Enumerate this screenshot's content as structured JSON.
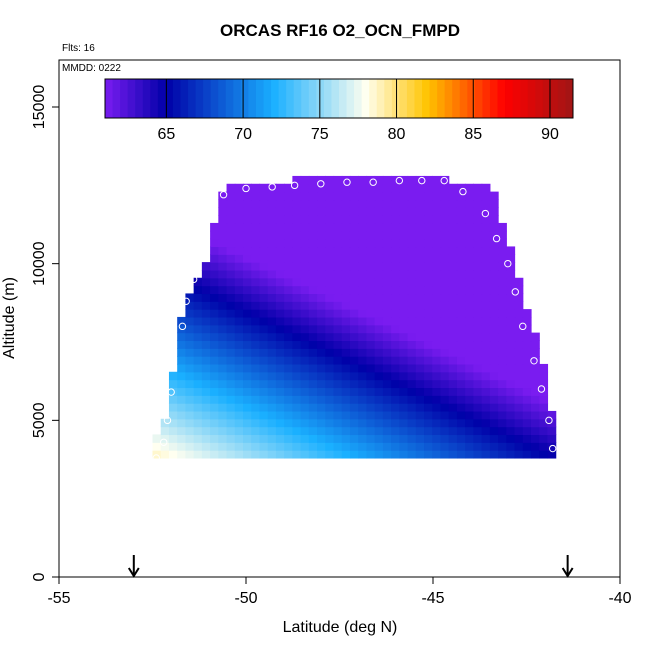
{
  "chart_data": {
    "type": "heatmap",
    "title": "ORCAS RF16 O2_OCN_FMPD",
    "annotations": {
      "flights": "Flts: 16",
      "date": "MMDD: 0222"
    },
    "xlabel": "Latitude (deg N)",
    "ylabel": "Altitude (m)",
    "xlim": [
      -55,
      -40
    ],
    "ylim": [
      0,
      16500
    ],
    "xticks": [
      -55,
      -50,
      -45,
      -40
    ],
    "yticks": [
      0,
      5000,
      10000,
      15000
    ],
    "colorbar": {
      "range": [
        61,
        91.5
      ],
      "ticks": [
        65,
        70,
        75,
        80,
        85,
        90
      ],
      "stops": [
        "#7a1cf0",
        "#0000a8",
        "#1ab0ff",
        "#fffff0",
        "#ffc400",
        "#ff0000",
        "#a01515"
      ],
      "stop_values": [
        61,
        65,
        72,
        78,
        82,
        87,
        91.5
      ]
    },
    "field": {
      "lat_range": [
        -52.5,
        -41.7
      ],
      "alt_range": [
        3800,
        12700
      ],
      "value_model": {
        "base": 79,
        "lat_coef": -1.3,
        "alt_coef": -0.0023,
        "lat_ref": -52.5,
        "alt_ref": 3800
      },
      "boundary": [
        {
          "alt": 3800,
          "lat_min": -52.5,
          "lat_max": -41.7
        },
        {
          "alt": 4400,
          "lat_min": -52.4,
          "lat_max": -41.7
        },
        {
          "alt": 5000,
          "lat_min": -52.2,
          "lat_max": -41.8
        },
        {
          "alt": 6000,
          "lat_min": -52.0,
          "lat_max": -41.9
        },
        {
          "alt": 7000,
          "lat_min": -51.9,
          "lat_max": -42.1
        },
        {
          "alt": 8000,
          "lat_min": -51.8,
          "lat_max": -42.3
        },
        {
          "alt": 9000,
          "lat_min": -51.5,
          "lat_max": -42.6
        },
        {
          "alt": 10000,
          "lat_min": -51.1,
          "lat_max": -42.8
        },
        {
          "alt": 11000,
          "lat_min": -50.9,
          "lat_max": -43.0
        },
        {
          "alt": 12000,
          "lat_min": -50.7,
          "lat_max": -43.4
        },
        {
          "alt": 12400,
          "lat_min": -50.7,
          "lat_max": -43.3
        },
        {
          "alt": 12700,
          "lat_min": -48.7,
          "lat_max": -44.6
        }
      ]
    },
    "flight_points": [
      {
        "lat": -52.4,
        "alt": 3800
      },
      {
        "lat": -52.2,
        "alt": 4300
      },
      {
        "lat": -52.1,
        "alt": 5000
      },
      {
        "lat": -52.0,
        "alt": 5900
      },
      {
        "lat": -51.7,
        "alt": 8000
      },
      {
        "lat": -51.6,
        "alt": 8800
      },
      {
        "lat": -51.4,
        "alt": 9500
      },
      {
        "lat": -51.1,
        "alt": 10700
      },
      {
        "lat": -50.9,
        "alt": 11500
      },
      {
        "lat": -50.6,
        "alt": 12200
      },
      {
        "lat": -50.0,
        "alt": 12400
      },
      {
        "lat": -49.3,
        "alt": 12450
      },
      {
        "lat": -48.7,
        "alt": 12500
      },
      {
        "lat": -48.0,
        "alt": 12550
      },
      {
        "lat": -47.3,
        "alt": 12600
      },
      {
        "lat": -46.6,
        "alt": 12600
      },
      {
        "lat": -45.9,
        "alt": 12650
      },
      {
        "lat": -45.3,
        "alt": 12650
      },
      {
        "lat": -44.7,
        "alt": 12650
      },
      {
        "lat": -44.2,
        "alt": 12300
      },
      {
        "lat": -43.6,
        "alt": 11600
      },
      {
        "lat": -43.3,
        "alt": 10800
      },
      {
        "lat": -43.0,
        "alt": 10000
      },
      {
        "lat": -42.8,
        "alt": 9100
      },
      {
        "lat": -42.6,
        "alt": 8000
      },
      {
        "lat": -42.3,
        "alt": 6900
      },
      {
        "lat": -42.1,
        "alt": 6000
      },
      {
        "lat": -41.9,
        "alt": 5000
      },
      {
        "lat": -41.8,
        "alt": 4100
      }
    ],
    "markers": [
      {
        "type": "down-arrow",
        "lat": -53.0
      },
      {
        "type": "down-arrow",
        "lat": -41.4
      }
    ]
  }
}
